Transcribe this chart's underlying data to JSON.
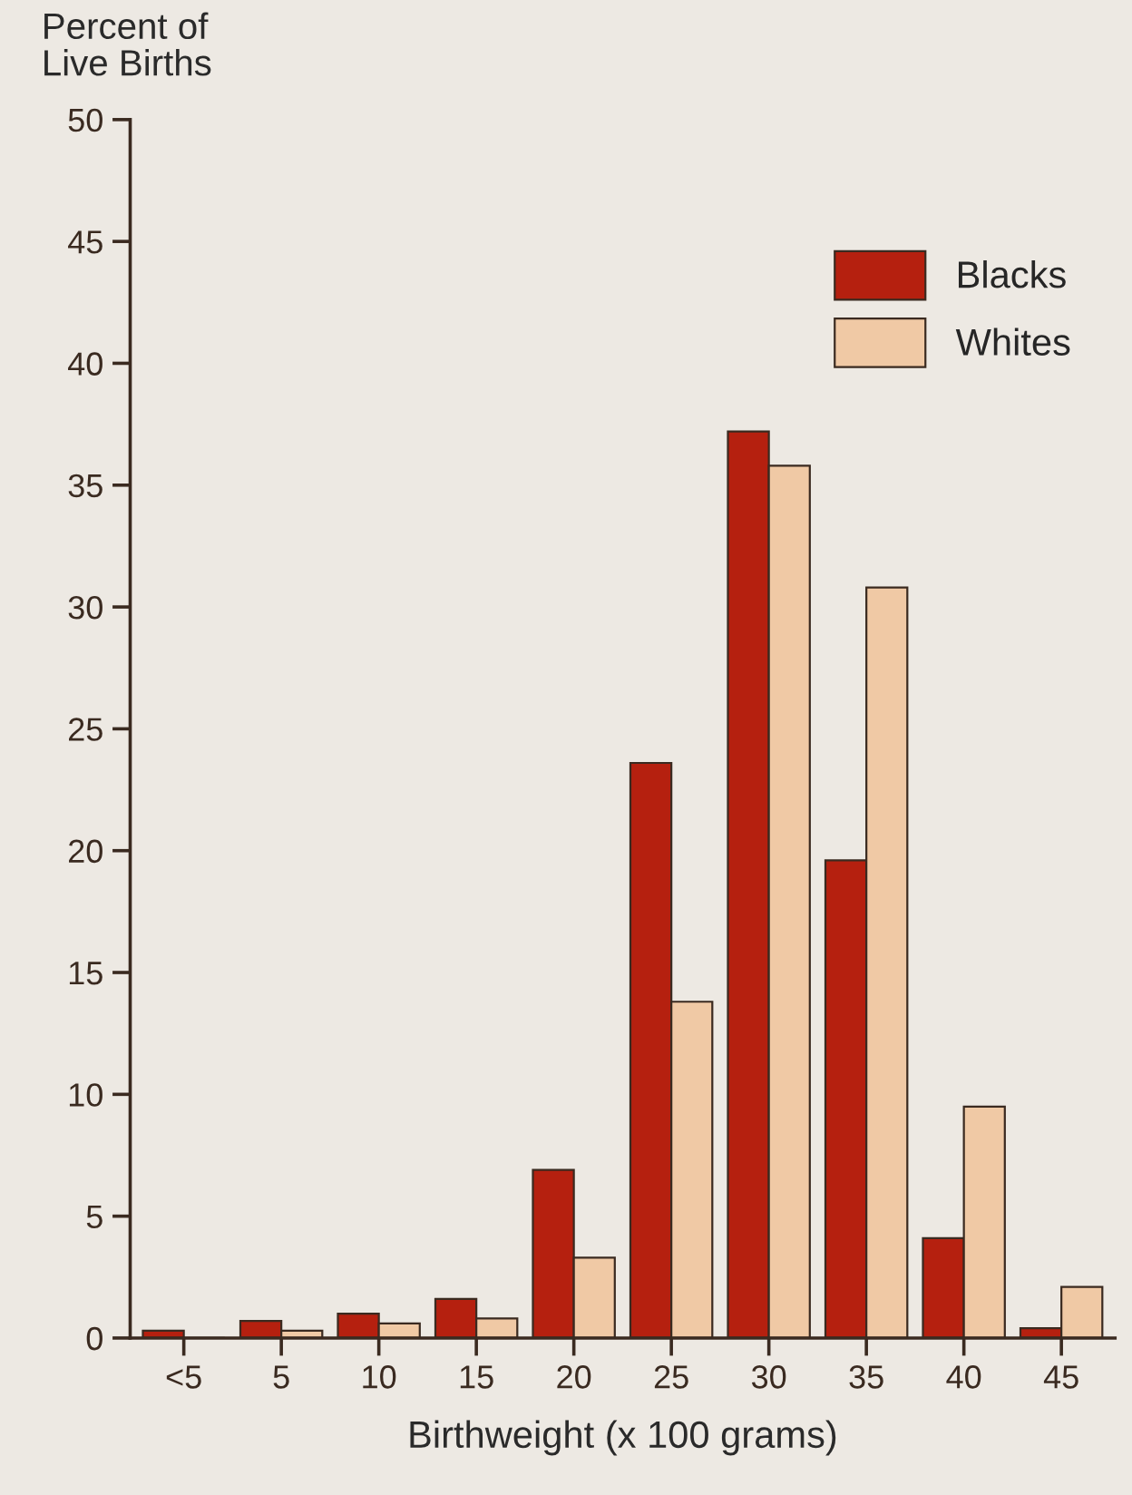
{
  "chart_data": {
    "type": "bar",
    "ylabel": "Percent of\nLive Births",
    "xlabel": "Birthweight (x 100 grams)",
    "categories": [
      "<5",
      "5",
      "10",
      "15",
      "20",
      "25",
      "30",
      "35",
      "40",
      "45"
    ],
    "series": [
      {
        "name": "Blacks",
        "color": "#b5200f",
        "values": [
          0.3,
          0.7,
          1.0,
          1.6,
          6.9,
          23.6,
          37.2,
          19.6,
          4.1,
          0.4
        ]
      },
      {
        "name": "Whites",
        "color": "#f0c9a5",
        "values": [
          null,
          0.3,
          0.6,
          0.8,
          3.3,
          13.8,
          35.8,
          30.8,
          9.5,
          2.1
        ]
      }
    ],
    "ylim": [
      0,
      50
    ],
    "yticks": [
      0,
      5,
      10,
      15,
      20,
      25,
      30,
      35,
      40,
      45,
      50
    ],
    "grid": false,
    "legend": "top right"
  }
}
